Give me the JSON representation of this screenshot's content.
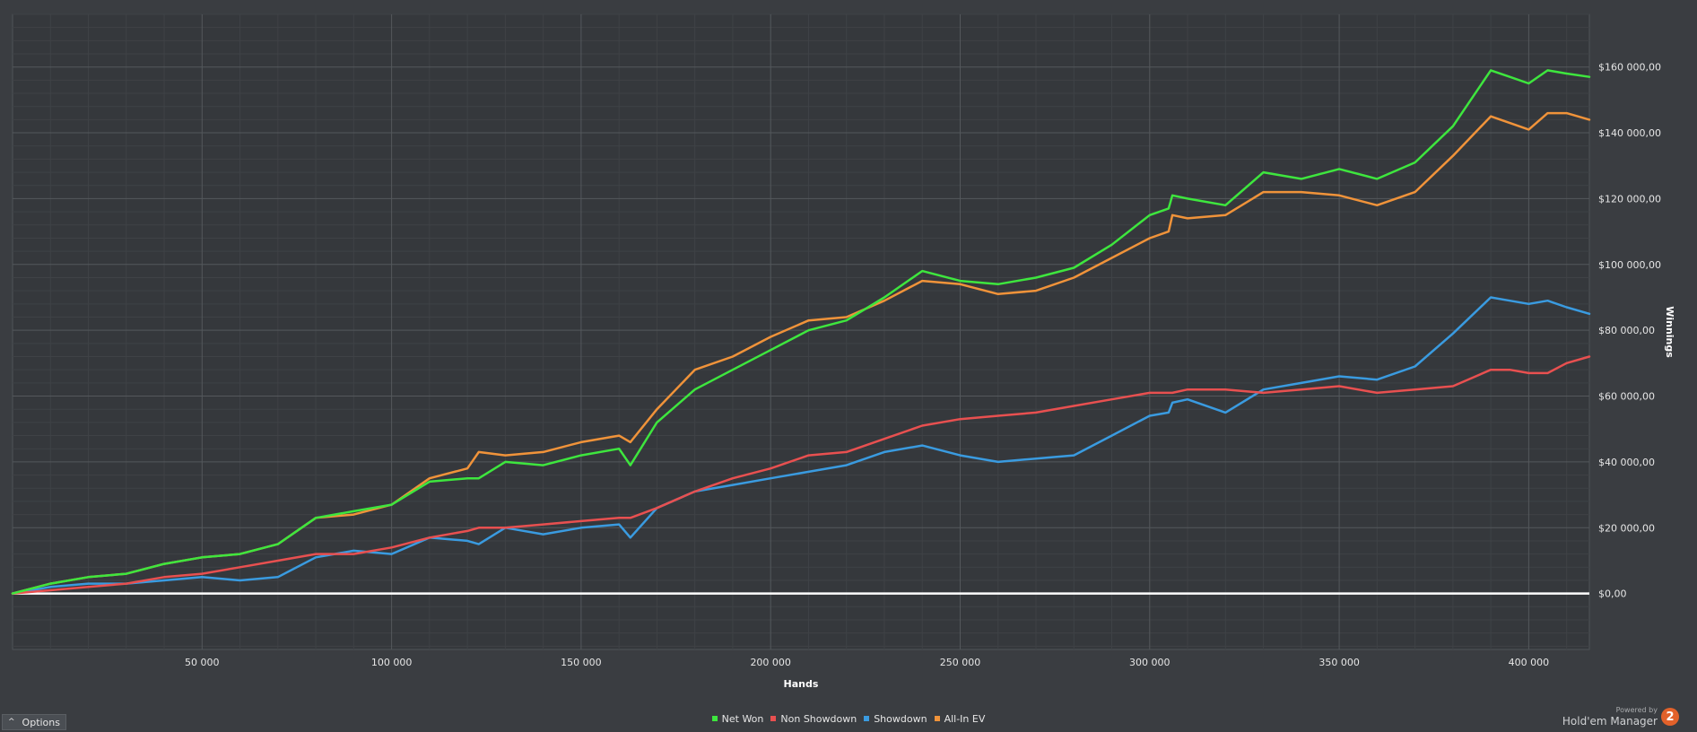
{
  "chart_data": {
    "type": "line",
    "xlabel": "Hands",
    "ylabel": "Winnings",
    "xlim": [
      0,
      416000
    ],
    "ylim": [
      -17000,
      176000
    ],
    "x_ticks": [
      50000,
      100000,
      150000,
      200000,
      250000,
      300000,
      350000,
      400000
    ],
    "x_tick_labels": [
      "50 000",
      "100 000",
      "150 000",
      "200 000",
      "250 000",
      "300 000",
      "350 000",
      "400 000"
    ],
    "y_ticks": [
      0,
      20000,
      40000,
      60000,
      80000,
      100000,
      120000,
      140000,
      160000
    ],
    "y_tick_labels": [
      "$0,00",
      "$20 000,00",
      "$40 000,00",
      "$60 000,00",
      "$80 000,00",
      "$100 000,00",
      "$120 000,00",
      "$140 000,00",
      "$160 000,00"
    ],
    "grid": true,
    "legend_position": "bottom-center",
    "x": [
      0,
      10000,
      20000,
      30000,
      40000,
      50000,
      60000,
      70000,
      80000,
      90000,
      100000,
      110000,
      120000,
      123000,
      130000,
      140000,
      150000,
      160000,
      163000,
      170000,
      180000,
      190000,
      200000,
      210000,
      220000,
      230000,
      240000,
      250000,
      260000,
      270000,
      280000,
      290000,
      300000,
      305000,
      306000,
      310000,
      320000,
      330000,
      340000,
      350000,
      360000,
      370000,
      380000,
      390000,
      395000,
      400000,
      405000,
      410000,
      416000
    ],
    "series": [
      {
        "name": "Net Won",
        "color": "#3ee63e",
        "values": [
          0,
          3000,
          5000,
          6000,
          9000,
          11000,
          12000,
          15000,
          23000,
          25000,
          27000,
          34000,
          35000,
          35000,
          40000,
          39000,
          42000,
          44000,
          39000,
          52000,
          62000,
          68000,
          74000,
          80000,
          83000,
          90000,
          98000,
          95000,
          94000,
          96000,
          99000,
          106000,
          115000,
          117000,
          121000,
          120000,
          118000,
          128000,
          126000,
          129000,
          126000,
          131000,
          142000,
          159000,
          157000,
          155000,
          159000,
          158000,
          157000
        ]
      },
      {
        "name": "Non Showdown",
        "color": "#e85050",
        "values": [
          0,
          1000,
          2000,
          3000,
          5000,
          6000,
          8000,
          10000,
          12000,
          12000,
          14000,
          17000,
          19000,
          20000,
          20000,
          21000,
          22000,
          23000,
          23000,
          26000,
          31000,
          35000,
          38000,
          42000,
          43000,
          47000,
          51000,
          53000,
          54000,
          55000,
          57000,
          59000,
          61000,
          61000,
          61000,
          62000,
          62000,
          61000,
          62000,
          63000,
          61000,
          62000,
          63000,
          68000,
          68000,
          67000,
          67000,
          70000,
          72000
        ]
      },
      {
        "name": "Showdown",
        "color": "#3a9be0",
        "values": [
          0,
          2000,
          3000,
          3000,
          4000,
          5000,
          4000,
          5000,
          11000,
          13000,
          12000,
          17000,
          16000,
          15000,
          20000,
          18000,
          20000,
          21000,
          17000,
          26000,
          31000,
          33000,
          35000,
          37000,
          39000,
          43000,
          45000,
          42000,
          40000,
          41000,
          42000,
          48000,
          54000,
          55000,
          58000,
          59000,
          55000,
          62000,
          64000,
          66000,
          65000,
          69000,
          79000,
          90000,
          89000,
          88000,
          89000,
          87000,
          85000
        ]
      },
      {
        "name": "All-In EV",
        "color": "#f0933a",
        "values": [
          0,
          3000,
          5000,
          6000,
          9000,
          11000,
          12000,
          15000,
          23000,
          24000,
          27000,
          35000,
          38000,
          43000,
          42000,
          43000,
          46000,
          48000,
          46000,
          56000,
          68000,
          72000,
          78000,
          83000,
          84000,
          89000,
          95000,
          94000,
          91000,
          92000,
          96000,
          102000,
          108000,
          110000,
          115000,
          114000,
          115000,
          122000,
          122000,
          121000,
          118000,
          122000,
          133000,
          145000,
          143000,
          141000,
          146000,
          146000,
          144000
        ]
      }
    ]
  },
  "options": {
    "label": "Options",
    "caret": "^"
  },
  "branding": {
    "powered_by": "Powered by",
    "product": "Hold'em Manager",
    "logo_digit": "2"
  }
}
